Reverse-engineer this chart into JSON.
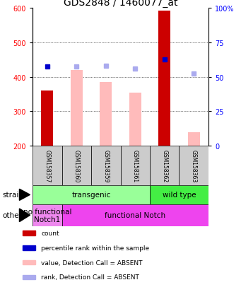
{
  "title": "GDS2848 / 1460077_at",
  "samples": [
    "GSM158357",
    "GSM158360",
    "GSM158359",
    "GSM158361",
    "GSM158362",
    "GSM158363"
  ],
  "ylim_left": [
    200,
    600
  ],
  "ylim_right": [
    0,
    100
  ],
  "yticks_left": [
    200,
    300,
    400,
    500,
    600
  ],
  "yticks_right": [
    0,
    25,
    50,
    75,
    100
  ],
  "bar_values": [
    360,
    420,
    385,
    355,
    593,
    240
  ],
  "bar_colors": [
    "#cc0000",
    "#ffbbbb",
    "#ffbbbb",
    "#ffbbbb",
    "#cc0000",
    "#ffbbbb"
  ],
  "dot_values": [
    430,
    430,
    432,
    425,
    450,
    410
  ],
  "dot_colors": [
    "#0000cc",
    "#aaaaee",
    "#aaaaee",
    "#aaaaee",
    "#0000cc",
    "#aaaaee"
  ],
  "strain_groups": [
    {
      "label": "transgenic",
      "start": 0,
      "end": 4,
      "color": "#99ff99"
    },
    {
      "label": "wild type",
      "start": 4,
      "end": 6,
      "color": "#44ee44"
    }
  ],
  "other_groups": [
    {
      "label": "no functional\nNotch1",
      "start": 0,
      "end": 1,
      "color": "#ee88ee"
    },
    {
      "label": "functional Notch",
      "start": 1,
      "end": 6,
      "color": "#ee44ee"
    }
  ],
  "legend_colors": [
    "#cc0000",
    "#0000cc",
    "#ffbbbb",
    "#aaaaee"
  ],
  "legend_labels": [
    "count",
    "percentile rank within the sample",
    "value, Detection Call = ABSENT",
    "rank, Detection Call = ABSENT"
  ],
  "title_fontsize": 10,
  "tick_fontsize": 7,
  "sample_fontsize": 5.5,
  "annot_fontsize": 7.5,
  "legend_fontsize": 6.5
}
